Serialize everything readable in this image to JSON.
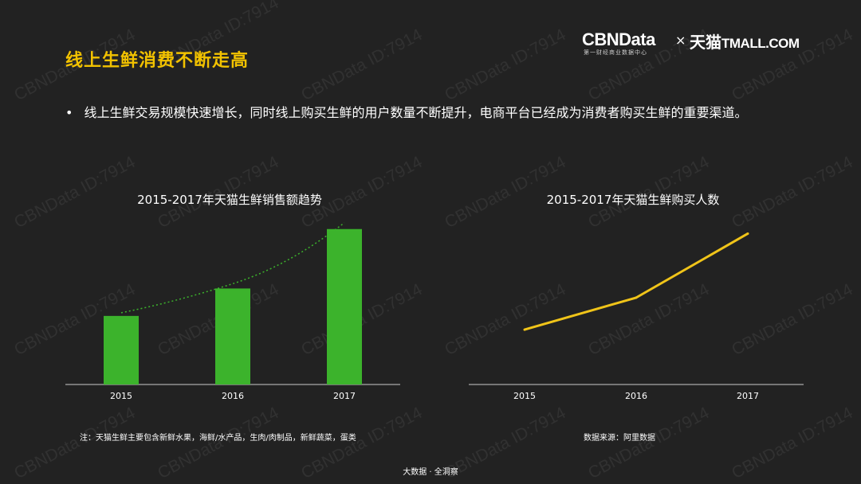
{
  "watermark_text": "CBNData ID:7914",
  "slide": {
    "title": "线上生鲜消费不断走高",
    "bullet": "线上生鲜交易规模快速增长，同时线上购买生鲜的用户数量不断提升，电商平台已经成为消费者购买生鲜的重要渠道。",
    "bullet_marker": "•",
    "footer": "大数据 · 全洞察"
  },
  "logo": {
    "cbn_text": "CBNData",
    "cbn_sub": "第一财经商业数据中心",
    "separator": "×",
    "tmall_cn": "天猫",
    "tmall_en": "TMALL.COM"
  },
  "notes": {
    "left": "注：天猫生鲜主要包含新鲜水果，海鲜/水产品，生肉/肉制品，新鲜蔬菜，蛋类",
    "right": "数据来源：阿里数据"
  },
  "colors": {
    "background": "#222222",
    "title": "#f2c200",
    "bar": "#3cb32c",
    "trend": "#3cb32c",
    "line": "#f0c419",
    "axis": "#cccccc"
  },
  "chart_data": [
    {
      "type": "bar",
      "title": "2015-2017年天猫生鲜销售额趋势",
      "categories": [
        "2015",
        "2016",
        "2017"
      ],
      "values": [
        30,
        42,
        68
      ],
      "ylim": [
        0,
        70
      ],
      "trendline": true,
      "grid": false,
      "legend": "none"
    },
    {
      "type": "line",
      "title": "2015-2017年天猫生鲜购买人数",
      "categories": [
        "2015",
        "2016",
        "2017"
      ],
      "values": [
        24,
        38,
        66
      ],
      "ylim": [
        0,
        70
      ],
      "grid": false,
      "legend": "none"
    }
  ]
}
